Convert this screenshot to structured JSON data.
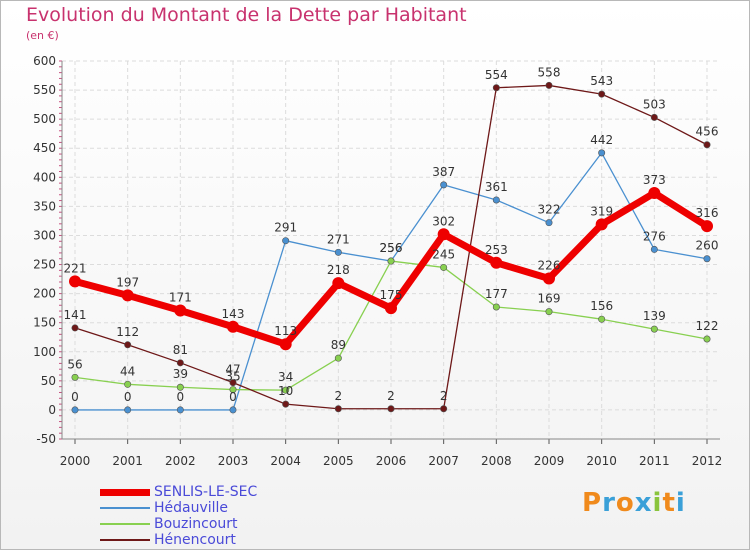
{
  "header": {
    "title": "Evolution du Montant de la Dette par Habitant",
    "subtitle": "(en €)"
  },
  "logo": {
    "letters": [
      "P",
      "r",
      "o",
      "x",
      "i",
      "t",
      "i"
    ],
    "colors": [
      "#f08a1c",
      "#3aa0d8",
      "#f08a1c",
      "#3aa0d8",
      "#8ac43c",
      "#f08a1c",
      "#3aa0d8"
    ]
  },
  "chart_data": {
    "type": "line",
    "title": "Evolution du Montant de la Dette par Habitant",
    "subtitle": "(en €)",
    "x": [
      "2000",
      "2001",
      "2002",
      "2003",
      "2004",
      "2005",
      "2006",
      "2007",
      "2008",
      "2009",
      "2010",
      "2011",
      "2012"
    ],
    "ylim": [
      -50,
      600
    ],
    "yticks": [
      -50,
      0,
      50,
      100,
      150,
      200,
      250,
      300,
      350,
      400,
      450,
      500,
      550,
      600
    ],
    "grid": true,
    "legend_position": "bottom-left",
    "series": [
      {
        "name": "SENLIS-LE-SEC",
        "color": "#ee0000",
        "emphasis": true,
        "values": [
          221,
          197,
          171,
          143,
          113,
          218,
          175,
          302,
          253,
          226,
          319,
          373,
          316
        ]
      },
      {
        "name": "Hédauville",
        "color": "#4a90d0",
        "emphasis": false,
        "values": [
          0,
          0,
          0,
          0,
          291,
          271,
          256,
          387,
          361,
          322,
          442,
          276,
          260
        ]
      },
      {
        "name": "Bouzincourt",
        "color": "#88d050",
        "emphasis": false,
        "values": [
          56,
          44,
          39,
          35,
          34,
          89,
          256,
          245,
          177,
          169,
          156,
          139,
          122
        ]
      },
      {
        "name": "Hénencourt",
        "color": "#6e1818",
        "emphasis": false,
        "values": [
          141,
          112,
          81,
          47,
          10,
          2,
          2,
          2,
          554,
          558,
          543,
          503,
          456
        ]
      }
    ]
  }
}
